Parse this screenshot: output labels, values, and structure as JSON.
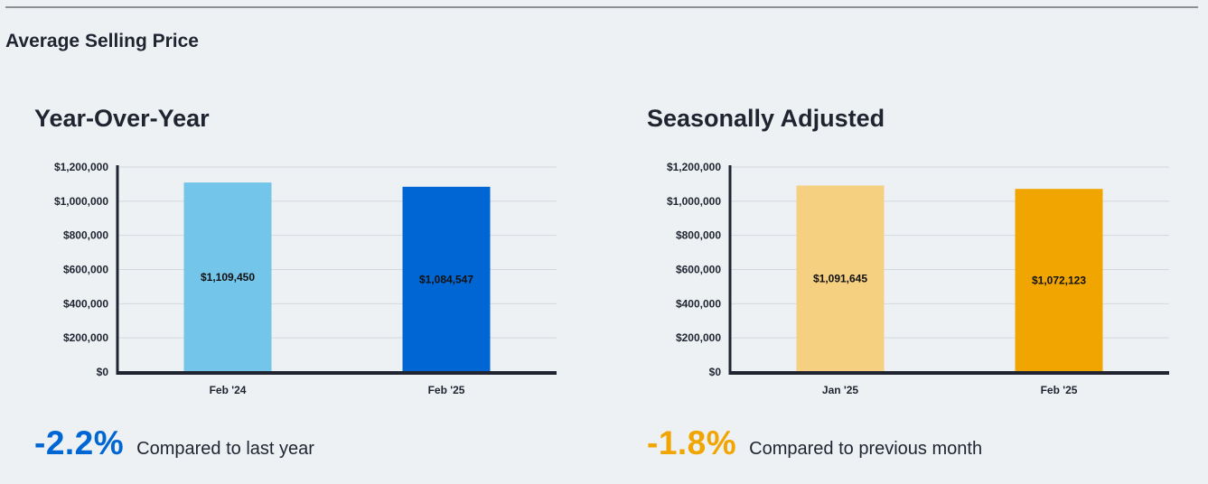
{
  "section_title": "Average Selling Price",
  "colors": {
    "background": "#edf1f4",
    "axis": "#1f2430",
    "grid": "#d3d8de",
    "yoy_prev": "#73c5ea",
    "yoy_curr": "#0066d4",
    "sa_prev": "#f6d081",
    "sa_curr": "#f1a500",
    "yoy_pct": "#0066d4",
    "sa_pct": "#f1a500"
  },
  "panels": [
    {
      "title": "Year-Over-Year",
      "percent": "-2.2%",
      "compare_text": "Compared to last year"
    },
    {
      "title": "Seasonally Adjusted",
      "percent": "-1.8%",
      "compare_text": "Compared to previous month"
    }
  ],
  "chart_data": [
    {
      "type": "bar",
      "title": "Year-Over-Year",
      "categories": [
        "Feb '24",
        "Feb '25"
      ],
      "values": [
        1109450,
        1084547
      ],
      "value_labels": [
        "$1,109,450",
        "$1,084,547"
      ],
      "bar_colors": [
        "#73c5ea",
        "#0066d4"
      ],
      "ylim": [
        0,
        1200000
      ],
      "yticks": [
        0,
        200000,
        400000,
        600000,
        800000,
        1000000,
        1200000
      ],
      "ytick_labels": [
        "$0",
        "$200,000",
        "$400,000",
        "$600,000",
        "$800,000",
        "$1,000,000",
        "$1,200,000"
      ],
      "grid": true,
      "legend": "none"
    },
    {
      "type": "bar",
      "title": "Seasonally Adjusted",
      "categories": [
        "Jan '25",
        "Feb '25"
      ],
      "values": [
        1091645,
        1072123
      ],
      "value_labels": [
        "$1,091,645",
        "$1,072,123"
      ],
      "bar_colors": [
        "#f6d081",
        "#f1a500"
      ],
      "ylim": [
        0,
        1200000
      ],
      "yticks": [
        0,
        200000,
        400000,
        600000,
        800000,
        1000000,
        1200000
      ],
      "ytick_labels": [
        "$0",
        "$200,000",
        "$400,000",
        "$600,000",
        "$800,000",
        "$1,000,000",
        "$1,200,000"
      ],
      "grid": true,
      "legend": "none"
    }
  ]
}
